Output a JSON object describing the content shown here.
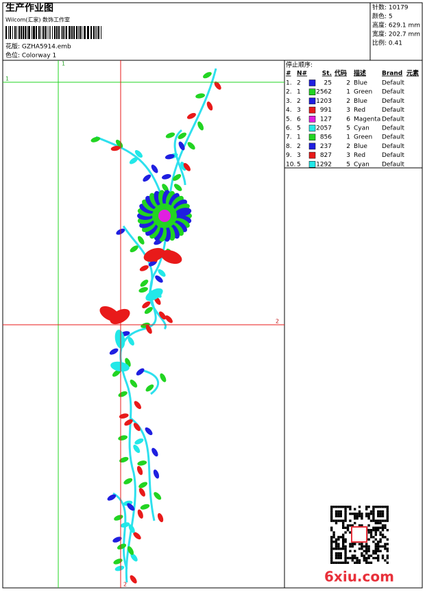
{
  "header": {
    "title": "生产作业图",
    "subtitle": "Wilcom(汇家) 数饰工作室",
    "design": "花版:  GZHA5914.emb",
    "colorway": "色位:  Colorway 1"
  },
  "stats": [
    "针数: 10179",
    "颜色: 5",
    "高度: 629.1 mm",
    "宽度: 202.7 mm",
    "比例: 0.41"
  ],
  "guides": {
    "green": "1",
    "red": "2"
  },
  "table": {
    "title": "停止顺序:",
    "columns": [
      "#",
      "N#",
      "St.",
      "代码",
      "描述",
      "Brand",
      "元素"
    ],
    "rows": [
      {
        "no": "1.",
        "n": "2",
        "color": "#1f1fe0",
        "st": "25",
        "code": "2",
        "desc": "Blue",
        "brand": "Default"
      },
      {
        "no": "2.",
        "n": "1",
        "color": "#22d422",
        "st": "2562",
        "code": "1",
        "desc": "Green",
        "brand": "Default"
      },
      {
        "no": "3.",
        "n": "2",
        "color": "#1f1fe0",
        "st": "1203",
        "code": "2",
        "desc": "Blue",
        "brand": "Default"
      },
      {
        "no": "4.",
        "n": "3",
        "color": "#e81a1a",
        "st": "991",
        "code": "3",
        "desc": "Red",
        "brand": "Default"
      },
      {
        "no": "5.",
        "n": "6",
        "color": "#e020e0",
        "st": "127",
        "code": "6",
        "desc": "Magenta",
        "brand": "Default"
      },
      {
        "no": "6.",
        "n": "5",
        "color": "#22e8e8",
        "st": "2057",
        "code": "5",
        "desc": "Cyan",
        "brand": "Default"
      },
      {
        "no": "7.",
        "n": "1",
        "color": "#22d422",
        "st": "856",
        "code": "1",
        "desc": "Green",
        "brand": "Default"
      },
      {
        "no": "8.",
        "n": "2",
        "color": "#1f1fe0",
        "st": "237",
        "code": "2",
        "desc": "Blue",
        "brand": "Default"
      },
      {
        "no": "9.",
        "n": "3",
        "color": "#e81a1a",
        "st": "827",
        "code": "3",
        "desc": "Red",
        "brand": "Default"
      },
      {
        "no": "10.",
        "n": "5",
        "color": "#22e8e8",
        "st": "1292",
        "code": "5",
        "desc": "Cyan",
        "brand": "Default"
      }
    ]
  },
  "watermark": "6xiu.com"
}
